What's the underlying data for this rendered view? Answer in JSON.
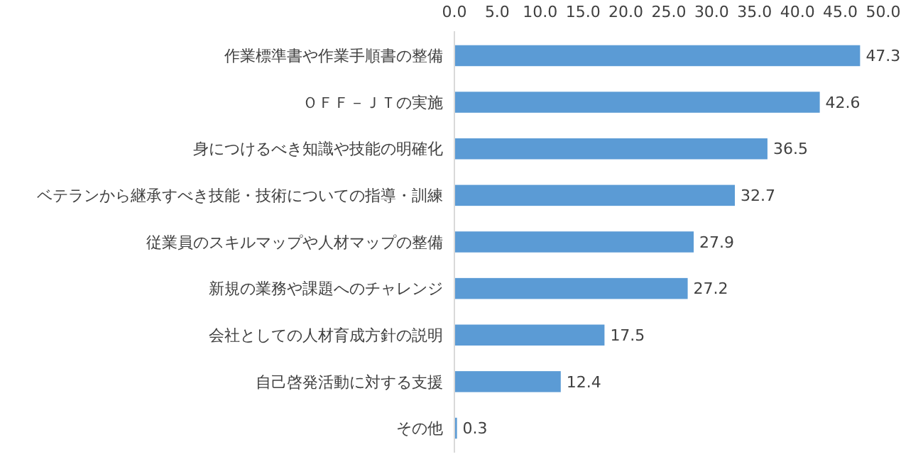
{
  "chart_data": {
    "type": "bar",
    "orientation": "horizontal",
    "categories": [
      "作業標準書や作業手順書の整備",
      "ＯＦＦ－ＪＴの実施",
      "身につけるべき知識や技能の明確化",
      "ベテランから継承すべき技能・技術についての指導・訓練",
      "従業員のスキルマップや人材マップの整備",
      "新規の業務や課題へのチャレンジ",
      "会社としての人材育成方針の説明",
      "自己啓発活動に対する支援",
      "その他"
    ],
    "values": [
      47.3,
      42.6,
      36.5,
      32.7,
      27.9,
      27.2,
      17.5,
      12.4,
      0.3
    ],
    "color": "#5b9bd5",
    "data_labels": true,
    "xlim": [
      0,
      50
    ],
    "xticks": [
      {
        "value": 0,
        "label": "0.0"
      },
      {
        "value": 5,
        "label": "5.0"
      },
      {
        "value": 10,
        "label": "10.0"
      },
      {
        "value": 15,
        "label": "15.0"
      },
      {
        "value": 20,
        "label": "20.0"
      },
      {
        "value": 25,
        "label": "25.0"
      },
      {
        "value": 30,
        "label": "30.0"
      },
      {
        "value": 35,
        "label": "35.0"
      },
      {
        "value": 40,
        "label": "40.0"
      },
      {
        "value": 45,
        "label": "45.0"
      },
      {
        "value": 50,
        "label": "50.0"
      }
    ]
  }
}
